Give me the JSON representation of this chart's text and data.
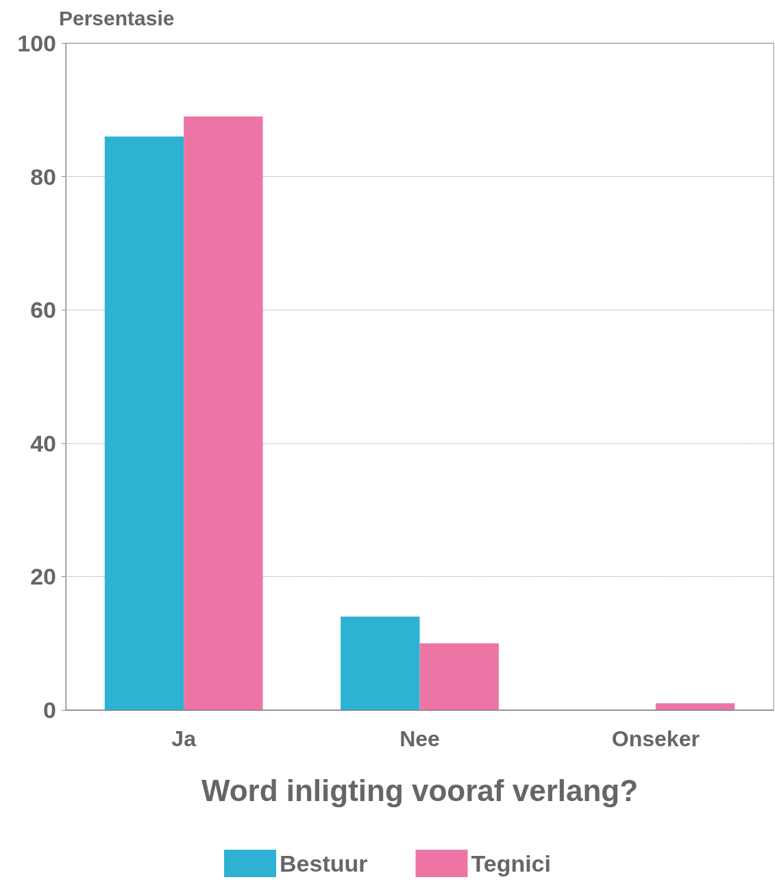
{
  "chart_data": {
    "type": "bar",
    "xlabel": "Word inligting vooraf verlang?",
    "ylabel": "Persentasie",
    "categories": [
      "Ja",
      "Nee",
      "Onseker"
    ],
    "series": [
      {
        "name": "Bestuur",
        "color": "#2eb2d4",
        "values": [
          86,
          14,
          0
        ]
      },
      {
        "name": "Tegnici",
        "color": "#ec75a6",
        "values": [
          89,
          10,
          1
        ]
      }
    ],
    "ylim": [
      0,
      100
    ],
    "yticks": [
      0,
      20,
      40,
      60,
      80,
      100
    ],
    "grid": "y",
    "legend": "bottom"
  }
}
